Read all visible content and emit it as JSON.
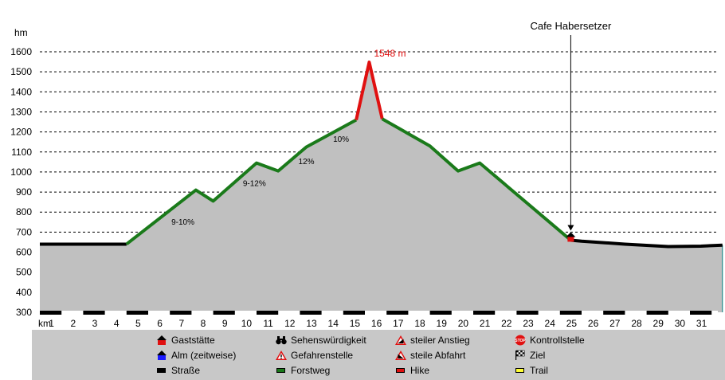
{
  "chart_data": {
    "type": "area",
    "y_unit_label": "hm",
    "x_unit_label": "km",
    "ylim": [
      300,
      1650
    ],
    "xlim": [
      0,
      31.5
    ],
    "y_ticks": [
      300,
      400,
      500,
      600,
      700,
      800,
      900,
      1000,
      1100,
      1200,
      1300,
      1400,
      1500,
      1600
    ],
    "x_ticks": [
      1,
      2,
      3,
      4,
      5,
      6,
      7,
      8,
      9,
      10,
      11,
      12,
      13,
      14,
      15,
      16,
      17,
      18,
      19,
      20,
      21,
      22,
      23,
      24,
      25,
      26,
      27,
      28,
      29,
      30,
      31
    ],
    "grid": true,
    "profile": [
      {
        "x": 0,
        "y": 640
      },
      {
        "x": 4,
        "y": 640
      },
      {
        "x": 7.2,
        "y": 910
      },
      {
        "x": 8,
        "y": 855
      },
      {
        "x": 10,
        "y": 1045
      },
      {
        "x": 11,
        "y": 1005
      },
      {
        "x": 12.3,
        "y": 1125
      },
      {
        "x": 14.6,
        "y": 1260
      },
      {
        "x": 15.2,
        "y": 1548
      },
      {
        "x": 15.8,
        "y": 1265
      },
      {
        "x": 18,
        "y": 1130
      },
      {
        "x": 19.3,
        "y": 1005
      },
      {
        "x": 20.3,
        "y": 1045
      },
      {
        "x": 24.5,
        "y": 660
      },
      {
        "x": 25,
        "y": 655
      },
      {
        "x": 27,
        "y": 640
      },
      {
        "x": 29,
        "y": 628
      },
      {
        "x": 30.5,
        "y": 630
      },
      {
        "x": 31.5,
        "y": 635
      }
    ],
    "series": [
      {
        "name": "Straße",
        "color": "#000000",
        "points": [
          [
            0,
            640
          ],
          [
            4,
            640
          ]
        ]
      },
      {
        "name": "Forstweg",
        "color": "#1a7a1a",
        "points": [
          [
            4,
            640
          ],
          [
            7.2,
            910
          ],
          [
            8,
            855
          ],
          [
            10,
            1045
          ],
          [
            11,
            1005
          ],
          [
            12.3,
            1125
          ],
          [
            14.6,
            1260
          ]
        ]
      },
      {
        "name": "Hike",
        "color": "#e01010",
        "points": [
          [
            14.6,
            1260
          ],
          [
            15.2,
            1548
          ],
          [
            15.8,
            1265
          ]
        ]
      },
      {
        "name": "Forstweg",
        "color": "#1a7a1a",
        "points": [
          [
            15.8,
            1265
          ],
          [
            18,
            1130
          ],
          [
            19.3,
            1005
          ],
          [
            20.3,
            1045
          ],
          [
            24.5,
            660
          ]
        ]
      },
      {
        "name": "Straße",
        "color": "#000000",
        "points": [
          [
            24.5,
            660
          ],
          [
            25,
            655
          ],
          [
            27,
            640
          ],
          [
            29,
            628
          ],
          [
            30.5,
            630
          ],
          [
            31.5,
            635
          ]
        ]
      }
    ],
    "peak_label": {
      "text": "1548 m",
      "x": 15.2,
      "y": 1548,
      "color": "#e01010"
    },
    "gradient_labels": [
      {
        "text": "9-10%",
        "x": 6.6,
        "y": 738
      },
      {
        "text": "9-12%",
        "x": 9.9,
        "y": 930
      },
      {
        "text": "12%",
        "x": 12.3,
        "y": 1040
      },
      {
        "text": "10%",
        "x": 13.9,
        "y": 1150
      }
    ],
    "poi": {
      "text": "Cafe Habersetzer",
      "x": 24.5,
      "y": 660,
      "icon": "gaststaette"
    }
  },
  "legend": {
    "items": [
      {
        "label": "Gaststätte",
        "icon": "gaststaette-icon"
      },
      {
        "label": "Sehenswürdigkeit",
        "icon": "binoculars-icon"
      },
      {
        "label": "steiler Anstieg",
        "icon": "steep-ascent-icon"
      },
      {
        "label": "Kontrollstelle",
        "icon": "stop-sign-icon"
      },
      {
        "label": "Alm (zeitweise)",
        "icon": "alm-icon"
      },
      {
        "label": "Gefahrenstelle",
        "icon": "warning-icon"
      },
      {
        "label": "steile Abfahrt",
        "icon": "steep-descent-icon"
      },
      {
        "label": "Ziel",
        "icon": "finish-flag-icon"
      },
      {
        "label": "Straße",
        "icon": "road-swatch",
        "color": "#000000"
      },
      {
        "label": "Forstweg",
        "icon": "forest-road-swatch",
        "color": "#1a7a1a"
      },
      {
        "label": "Hike",
        "icon": "hike-swatch",
        "color": "#e01010"
      },
      {
        "label": "Trail",
        "icon": "trail-swatch",
        "color": "#ffff33"
      }
    ]
  }
}
